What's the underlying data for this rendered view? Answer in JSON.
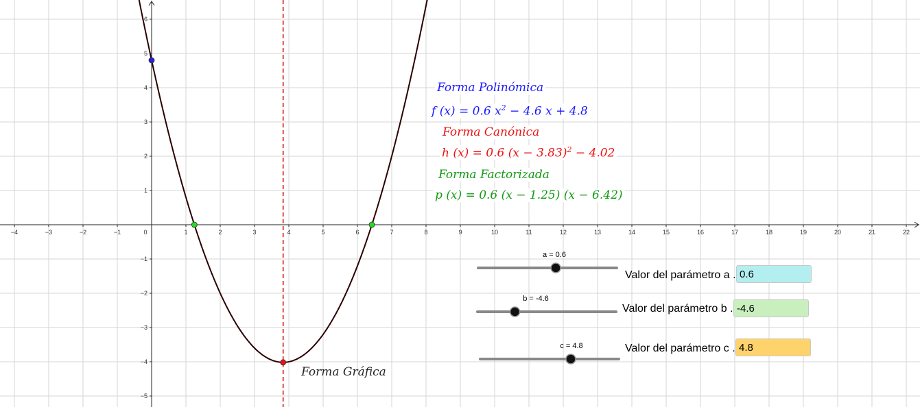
{
  "graph": {
    "x_axis_ticks": [
      "-4",
      "-3",
      "-2",
      "-1",
      "0",
      "1",
      "2",
      "3",
      "4",
      "5",
      "6",
      "7",
      "8",
      "9",
      "10",
      "11",
      "12",
      "13",
      "14",
      "15",
      "16",
      "17",
      "18",
      "19",
      "20",
      "21",
      "22"
    ],
    "y_axis_ticks": [
      "-5",
      "-4",
      "-3",
      "-2",
      "-1",
      "1",
      "2",
      "3",
      "4",
      "5",
      "6"
    ],
    "colors": {
      "curve": "#2b0000",
      "axis_line": "#cc0000",
      "vertex": "#ee1111",
      "intercept": "#2222dd",
      "roots": "#22dd22"
    }
  },
  "texts": {
    "poly_title": "Forma Polinómica",
    "poly_eq_lhs": "f (x)  =  0.6 x",
    "poly_eq_rhs": " − 4.6 x + 4.8",
    "canon_title": "Forma Canónica",
    "canon_eq_lhs": "h (x)  =  0.6  (x − 3.83)",
    "canon_eq_rhs": " − 4.02",
    "fact_title": "Forma Factorizada",
    "fact_eq": "p (x)  =  0.6  (x − 1.25)  (x − 6.42)",
    "graph_title": "Forma Gráfica",
    "exponent": "2"
  },
  "sliders": [
    {
      "label": "a = 0.6",
      "value": 0.6,
      "min": -5,
      "max": 5
    },
    {
      "label": "b = -4.6",
      "value": -4.6,
      "min": -10,
      "max": 10
    },
    {
      "label": "c = 4.8",
      "value": 4.8,
      "min": -5,
      "max": 10
    }
  ],
  "params": [
    {
      "label": "Valor del parámetro a .",
      "value": "0.6",
      "color": "#b3eef0"
    },
    {
      "label": "Valor del parámetro b .",
      "value": "-4.6",
      "color": "#c9efbf"
    },
    {
      "label": "Valor del parámetro c .",
      "value": "4.8",
      "color": "#ffd36b"
    }
  ]
}
